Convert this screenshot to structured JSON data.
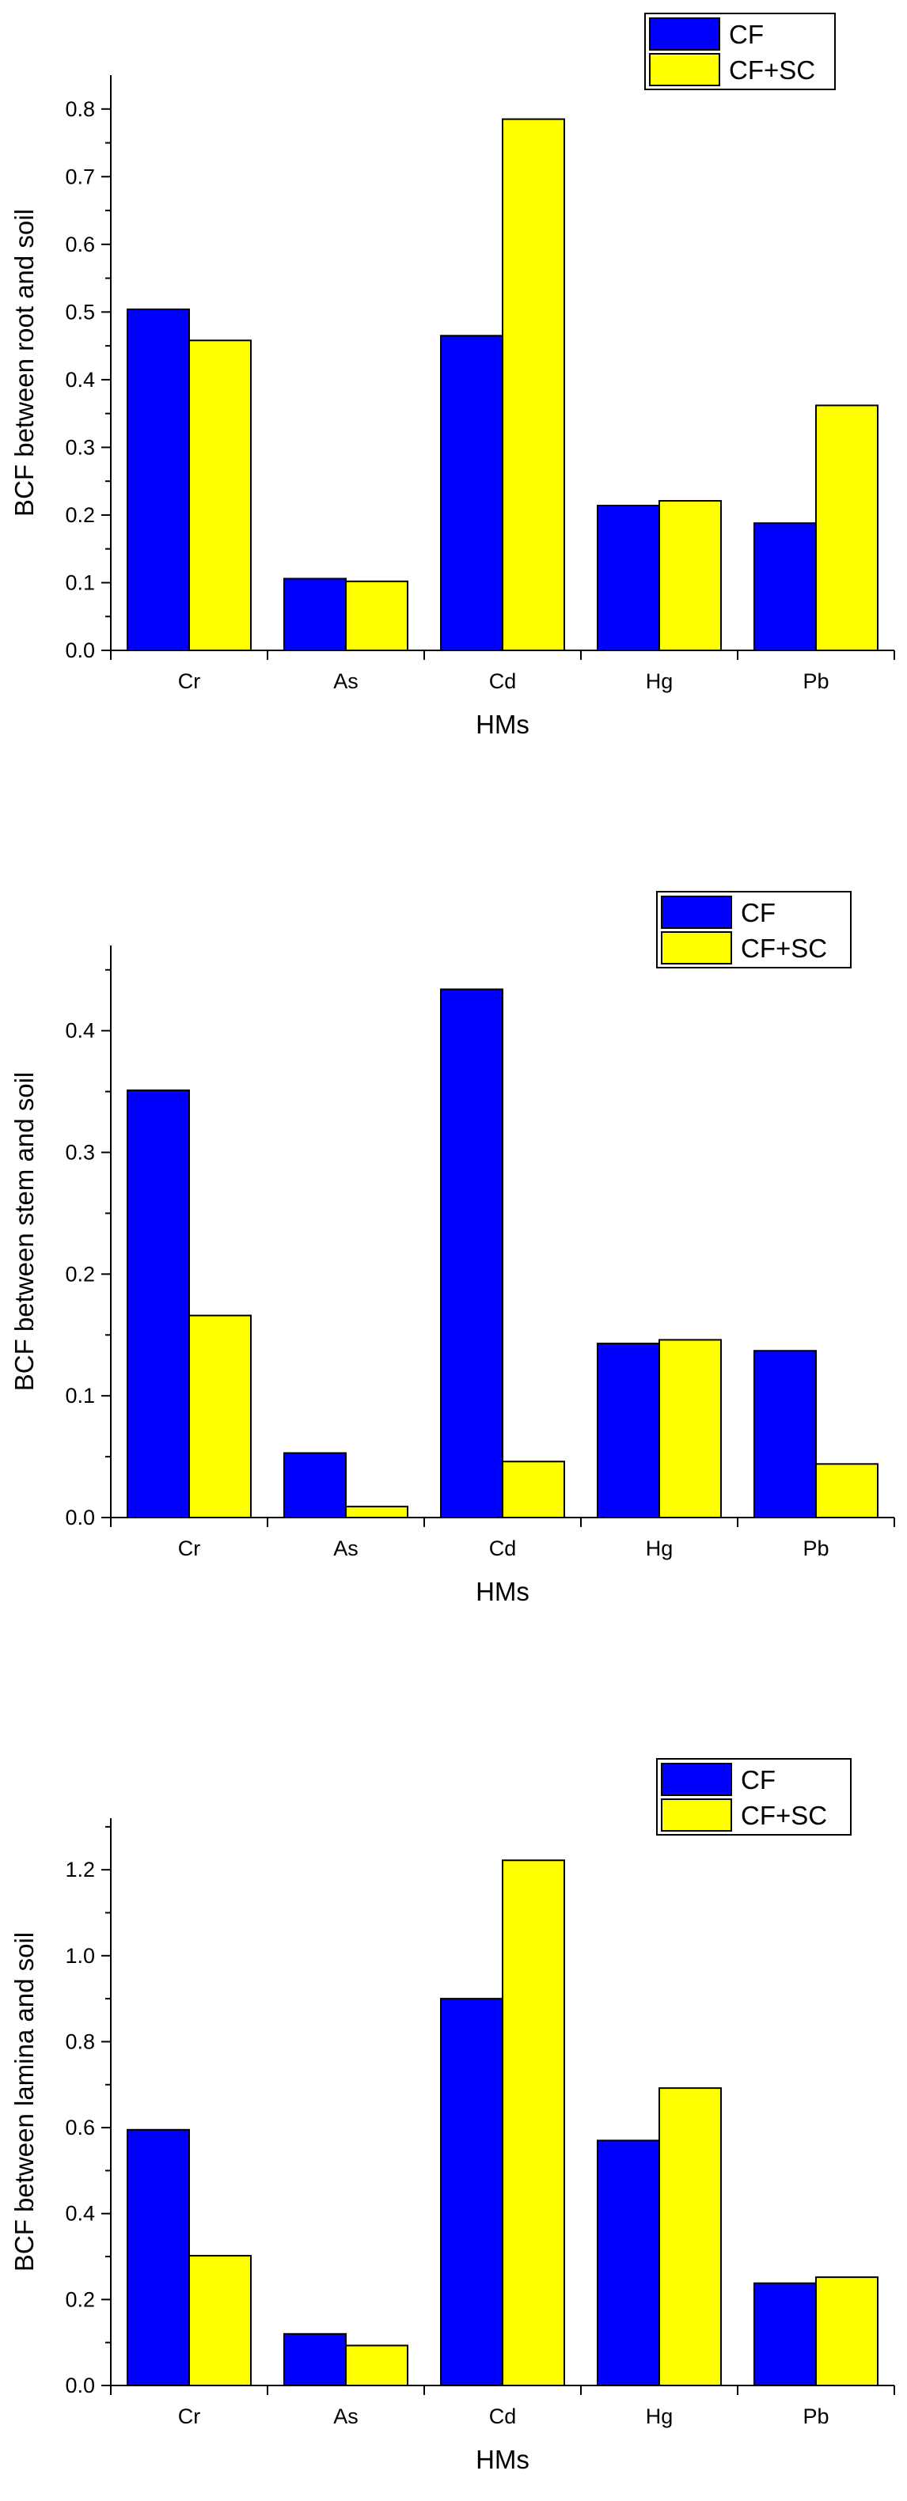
{
  "colors": {
    "CF": "#0000ff",
    "CF+SC": "#ffff00"
  },
  "chart_data": [
    {
      "type": "bar",
      "categories": [
        "Cr",
        "As",
        "Cd",
        "Hg",
        "Pb"
      ],
      "series": [
        {
          "name": "CF",
          "values": [
            0.504,
            0.106,
            0.465,
            0.214,
            0.188
          ]
        },
        {
          "name": "CF+SC",
          "values": [
            0.458,
            0.102,
            0.785,
            0.221,
            0.362
          ]
        }
      ],
      "xlabel": "HMs",
      "ylabel": "BCF between root and soil",
      "ylim": [
        0,
        0.85
      ],
      "yticks": [
        "0.0",
        "0.1",
        "0.2",
        "0.3",
        "0.4",
        "0.5",
        "0.6",
        "0.7",
        "0.8"
      ],
      "grid": false,
      "legend": "top-right"
    },
    {
      "type": "bar",
      "categories": [
        "Cr",
        "As",
        "Cd",
        "Hg",
        "Pb"
      ],
      "series": [
        {
          "name": "CF",
          "values": [
            0.351,
            0.053,
            0.434,
            0.143,
            0.137
          ]
        },
        {
          "name": "CF+SC",
          "values": [
            0.166,
            0.009,
            0.046,
            0.146,
            0.044
          ]
        }
      ],
      "xlabel": "HMs",
      "ylabel": "BCF between stem and soil",
      "ylim": [
        0,
        0.47
      ],
      "yticks": [
        "0.0",
        "0.1",
        "0.2",
        "0.3",
        "0.4"
      ],
      "grid": false,
      "legend": "top-right"
    },
    {
      "type": "bar",
      "categories": [
        "Cr",
        "As",
        "Cd",
        "Hg",
        "Pb"
      ],
      "series": [
        {
          "name": "CF",
          "values": [
            0.595,
            0.12,
            0.9,
            0.57,
            0.238
          ]
        },
        {
          "name": "CF+SC",
          "values": [
            0.302,
            0.093,
            1.222,
            0.692,
            0.252
          ]
        }
      ],
      "xlabel": "HMs",
      "ylabel": "BCF between lamina and soil",
      "ylim": [
        0,
        1.32
      ],
      "yticks": [
        "0.0",
        "0.2",
        "0.4",
        "0.6",
        "0.8",
        "1.0",
        "1.2"
      ],
      "grid": false,
      "legend": "top-right"
    }
  ]
}
